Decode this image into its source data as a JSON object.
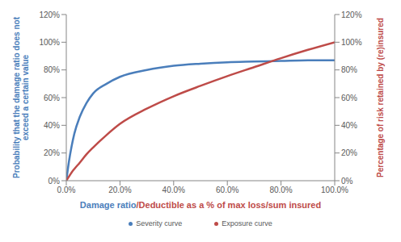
{
  "chart_data": {
    "type": "line",
    "xlabel": [
      "Damage ratio",
      "/Deductible as a % of max loss/sum insured"
    ],
    "ylabel": "Probability that the damage ratio does not exceed a certain value",
    "y2label": "Percentage of risk retained by (re)insured",
    "x": [
      0,
      1,
      2,
      3,
      5,
      7.5,
      10,
      15,
      20,
      30,
      40,
      50,
      60,
      70,
      80,
      90,
      100
    ],
    "xlim": [
      0,
      100
    ],
    "xticks": [
      {
        "value": 0,
        "label": "0.0%"
      },
      {
        "value": 20,
        "label": "20.0%"
      },
      {
        "value": 40,
        "label": "40.0%"
      },
      {
        "value": 60,
        "label": "60.0%"
      },
      {
        "value": 80,
        "label": "80.0%"
      },
      {
        "value": 100,
        "label": "100.0%"
      }
    ],
    "ylim": [
      0,
      120
    ],
    "yticks": [
      {
        "value": 0,
        "label": "0%"
      },
      {
        "value": 20,
        "label": "20%"
      },
      {
        "value": 40,
        "label": "40%"
      },
      {
        "value": 60,
        "label": "60%"
      },
      {
        "value": 80,
        "label": "80%"
      },
      {
        "value": 100,
        "label": "100%"
      },
      {
        "value": 120,
        "label": "120%"
      }
    ],
    "y2lim": [
      0,
      120
    ],
    "y2ticks": [
      {
        "value": 0,
        "label": "0%"
      },
      {
        "value": 20,
        "label": "20%"
      },
      {
        "value": 40,
        "label": "40%"
      },
      {
        "value": 60,
        "label": "60%"
      },
      {
        "value": 80,
        "label": "80%"
      },
      {
        "value": 100,
        "label": "100%"
      },
      {
        "value": 120,
        "label": "120%"
      }
    ],
    "grid": false,
    "legend": "bottom",
    "series": [
      {
        "name": "Severity curve",
        "color": "#4a7ebb",
        "values": [
          0,
          14,
          25,
          34,
          46,
          56,
          63,
          70,
          75,
          80,
          83,
          84.5,
          85.5,
          86,
          86.5,
          87,
          87
        ]
      },
      {
        "name": "Exposure curve",
        "color": "#be4b48",
        "axis": "y2",
        "values": [
          0,
          3,
          6,
          8.5,
          13,
          19,
          24,
          33,
          41,
          52,
          61,
          68.5,
          75.5,
          82,
          88.5,
          94.5,
          100
        ]
      }
    ]
  }
}
